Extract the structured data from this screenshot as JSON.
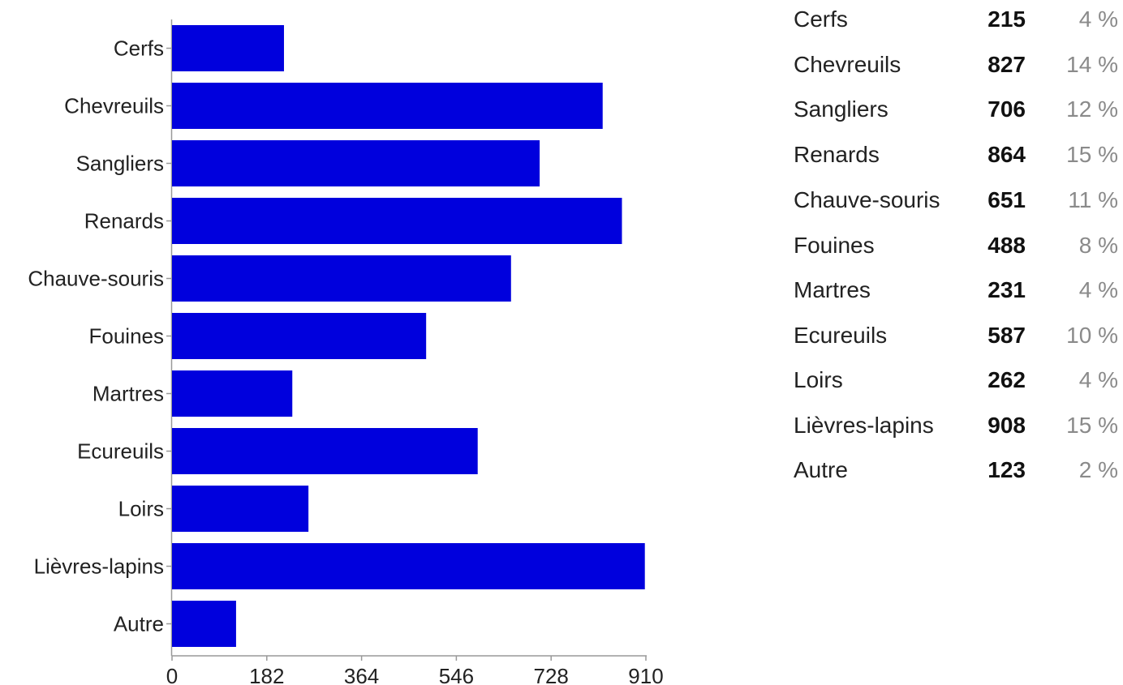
{
  "chart_data": {
    "type": "bar",
    "orientation": "horizontal",
    "categories": [
      "Cerfs",
      "Chevreuils",
      "Sangliers",
      "Renards",
      "Chauve-souris",
      "Fouines",
      "Martres",
      "Ecureuils",
      "Loirs",
      "Lièvres-lapins",
      "Autre"
    ],
    "values": [
      215,
      827,
      706,
      864,
      651,
      488,
      231,
      587,
      262,
      908,
      123
    ],
    "xlim": [
      0,
      910
    ],
    "xticks": [
      "0",
      "182",
      "364",
      "546",
      "728",
      "910"
    ],
    "bar_color": "#0000dd",
    "grid": false,
    "legend": "right"
  },
  "table": {
    "rows": [
      {
        "name": "Cerfs",
        "count": "215",
        "percent": "4 %"
      },
      {
        "name": "Chevreuils",
        "count": "827",
        "percent": "14 %"
      },
      {
        "name": "Sangliers",
        "count": "706",
        "percent": "12 %"
      },
      {
        "name": "Renards",
        "count": "864",
        "percent": "15 %"
      },
      {
        "name": "Chauve-souris",
        "count": "651",
        "percent": "11 %"
      },
      {
        "name": "Fouines",
        "count": "488",
        "percent": "8 %"
      },
      {
        "name": "Martres",
        "count": "231",
        "percent": "4 %"
      },
      {
        "name": "Ecureuils",
        "count": "587",
        "percent": "10 %"
      },
      {
        "name": "Loirs",
        "count": "262",
        "percent": "4 %"
      },
      {
        "name": "Lièvres-lapins",
        "count": "908",
        "percent": "15 %"
      },
      {
        "name": "Autre",
        "count": "123",
        "percent": "2 %"
      }
    ]
  }
}
